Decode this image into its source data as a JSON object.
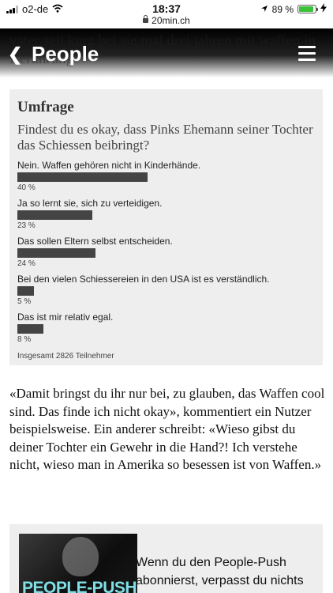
{
  "status_bar": {
    "carrier": "o2-de",
    "time": "18:37",
    "url": "20min.ch",
    "battery": "89 %",
    "battery_level": 0.89
  },
  "header": {
    "title": "People",
    "behind_text": "vater seit kurz bei sie mal drei jahren mit waffen in Berührung?"
  },
  "poll": {
    "heading": "Umfrage",
    "question": "Findest du es okay, dass Pinks Ehemann seiner Tochter das Schiessen beibringt?",
    "options": [
      {
        "label": "Nein. Waffen gehören nicht in Kinderhände.",
        "percent": "40 %",
        "value": 40
      },
      {
        "label": "Ja  so lernt sie, sich zu verteidigen.",
        "percent": "23 %",
        "value": 23
      },
      {
        "label": "Das sollen Eltern selbst entscheiden.",
        "percent": "24 %",
        "value": 24
      },
      {
        "label": "Bei den vielen Schiessereien in den USA ist es verständlich.",
        "percent": "5 %",
        "value": 5
      },
      {
        "label": "Das ist mir relativ egal.",
        "percent": "8 %",
        "value": 8
      }
    ],
    "total": "Insgesamt 2826 Teilnehmer"
  },
  "article": {
    "paragraph": "«Damit bringst du ihr nur bei, zu glauben, das Waffen cool sind. Das finde ich nicht okay», kommentiert ein Nutzer beispielsweise. Ein anderer schreibt: «Wieso gibst du deiner Tochter ein Gewehr in die Hand?! Ich verstehe nicht, wieso man in Amerika so besessen ist von Waffen.»"
  },
  "teaser": {
    "image_text": "PEOPLE-PUSH",
    "text": "Wenn du den People-Push abonnierst, verpasst du nichts"
  },
  "colors": {
    "poll_bg": "#eeeeee",
    "bar": "#444444",
    "battery": "#3cc13b",
    "teaser_accent": "#7fe0e6"
  }
}
